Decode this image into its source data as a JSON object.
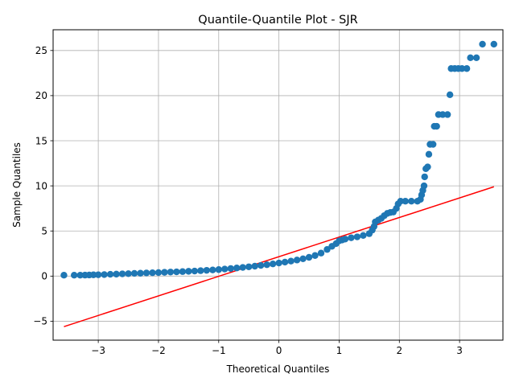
{
  "chart_data": {
    "type": "scatter",
    "title": "Quantile-Quantile Plot - SJR",
    "xlabel": "Theoretical Quantiles",
    "ylabel": "Sample Quantiles",
    "xlim": [
      -3.75,
      3.72
    ],
    "ylim": [
      -7.1,
      27.3
    ],
    "grid": true,
    "x_ticks": [
      -3,
      -2,
      -1,
      0,
      1,
      2,
      3
    ],
    "x_tick_labels": [
      "−3",
      "−2",
      "−1",
      "0",
      "1",
      "2",
      "3"
    ],
    "y_ticks": [
      -5,
      0,
      5,
      10,
      15,
      20,
      25
    ],
    "y_tick_labels": [
      "−5",
      "0",
      "5",
      "10",
      "15",
      "20",
      "25"
    ],
    "series": [
      {
        "kind": "points",
        "color": "#1f77b4",
        "points": [
          [
            -3.57,
            0.1
          ],
          [
            -3.4,
            0.1
          ],
          [
            -3.3,
            0.1
          ],
          [
            -3.22,
            0.11
          ],
          [
            -3.15,
            0.12
          ],
          [
            -3.08,
            0.14
          ],
          [
            -3.0,
            0.15
          ],
          [
            -2.9,
            0.17
          ],
          [
            -2.8,
            0.2
          ],
          [
            -2.7,
            0.22
          ],
          [
            -2.6,
            0.25
          ],
          [
            -2.5,
            0.27
          ],
          [
            -2.4,
            0.3
          ],
          [
            -2.3,
            0.32
          ],
          [
            -2.2,
            0.35
          ],
          [
            -2.1,
            0.37
          ],
          [
            -2.0,
            0.39
          ],
          [
            -1.9,
            0.42
          ],
          [
            -1.8,
            0.45
          ],
          [
            -1.7,
            0.47
          ],
          [
            -1.6,
            0.5
          ],
          [
            -1.5,
            0.53
          ],
          [
            -1.4,
            0.56
          ],
          [
            -1.3,
            0.6
          ],
          [
            -1.2,
            0.64
          ],
          [
            -1.1,
            0.68
          ],
          [
            -1.0,
            0.72
          ],
          [
            -0.9,
            0.78
          ],
          [
            -0.8,
            0.84
          ],
          [
            -0.7,
            0.9
          ],
          [
            -0.6,
            0.96
          ],
          [
            -0.5,
            1.03
          ],
          [
            -0.4,
            1.1
          ],
          [
            -0.3,
            1.18
          ],
          [
            -0.2,
            1.26
          ],
          [
            -0.1,
            1.35
          ],
          [
            0.0,
            1.45
          ],
          [
            0.1,
            1.55
          ],
          [
            0.2,
            1.66
          ],
          [
            0.3,
            1.78
          ],
          [
            0.4,
            1.92
          ],
          [
            0.5,
            2.08
          ],
          [
            0.6,
            2.28
          ],
          [
            0.7,
            2.55
          ],
          [
            0.8,
            2.95
          ],
          [
            0.88,
            3.3
          ],
          [
            0.95,
            3.6
          ],
          [
            1.0,
            3.9
          ],
          [
            1.05,
            4.0
          ],
          [
            1.1,
            4.1
          ],
          [
            1.2,
            4.25
          ],
          [
            1.3,
            4.35
          ],
          [
            1.4,
            4.5
          ],
          [
            1.5,
            4.7
          ],
          [
            1.55,
            5.1
          ],
          [
            1.58,
            5.5
          ],
          [
            1.6,
            6.0
          ],
          [
            1.65,
            6.2
          ],
          [
            1.7,
            6.4
          ],
          [
            1.75,
            6.7
          ],
          [
            1.8,
            6.95
          ],
          [
            1.85,
            7.05
          ],
          [
            1.9,
            7.1
          ],
          [
            1.95,
            7.5
          ],
          [
            1.98,
            8.0
          ],
          [
            2.02,
            8.3
          ],
          [
            2.1,
            8.3
          ],
          [
            2.2,
            8.3
          ],
          [
            2.3,
            8.3
          ],
          [
            2.35,
            8.5
          ],
          [
            2.37,
            9.0
          ],
          [
            2.39,
            9.5
          ],
          [
            2.41,
            10.0
          ],
          [
            2.42,
            11.0
          ],
          [
            2.44,
            11.9
          ],
          [
            2.47,
            12.1
          ],
          [
            2.49,
            13.5
          ],
          [
            2.51,
            14.6
          ],
          [
            2.56,
            14.6
          ],
          [
            2.58,
            16.6
          ],
          [
            2.62,
            16.6
          ],
          [
            2.65,
            17.9
          ],
          [
            2.72,
            17.9
          ],
          [
            2.8,
            17.9
          ],
          [
            2.84,
            20.1
          ],
          [
            2.86,
            23.0
          ],
          [
            2.92,
            23.0
          ],
          [
            2.98,
            23.0
          ],
          [
            3.04,
            23.0
          ],
          [
            3.12,
            23.0
          ],
          [
            3.18,
            24.2
          ],
          [
            3.28,
            24.2
          ],
          [
            3.38,
            25.7
          ],
          [
            3.57,
            25.7
          ]
        ]
      },
      {
        "kind": "line",
        "color": "#ff0000",
        "points": [
          [
            -3.57,
            -5.6
          ],
          [
            3.57,
            9.9
          ]
        ]
      }
    ]
  }
}
